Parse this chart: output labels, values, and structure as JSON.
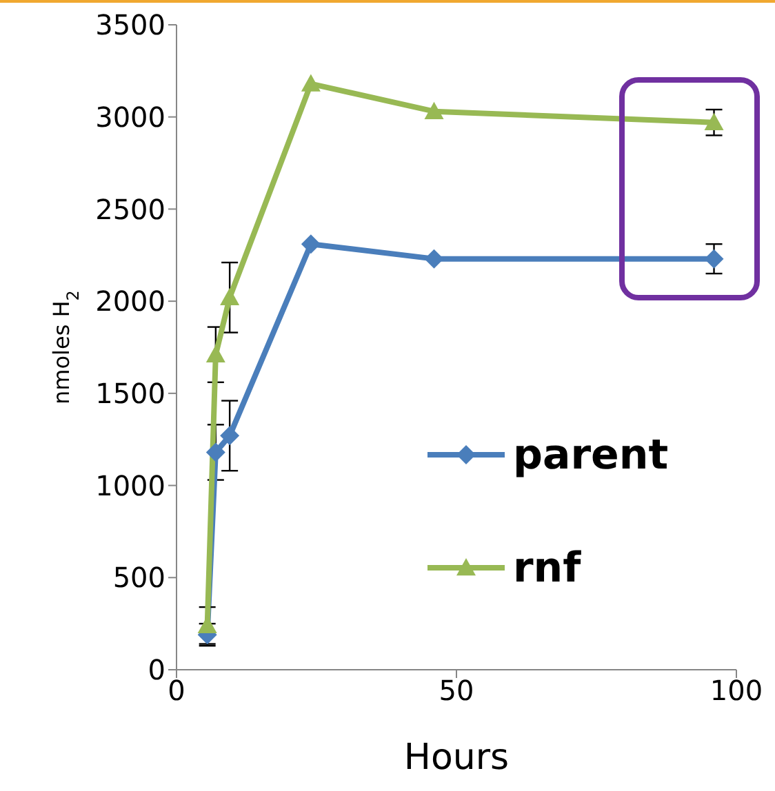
{
  "chart_data": {
    "type": "line",
    "xlabel": "Hours",
    "ylabel": "nmoles H$_{2}$",
    "xlim": [
      0,
      100
    ],
    "xticks": [
      0,
      50,
      100
    ],
    "ylim": [
      0,
      3500
    ],
    "yticks": [
      0,
      500,
      1000,
      1500,
      2000,
      2500,
      3000,
      3500
    ],
    "grid": false,
    "legend": "right",
    "series": [
      {
        "name": "parent",
        "color": "#4a7ebb",
        "marker": "diamond",
        "x": [
          5.5,
          7,
          9.5,
          24,
          46,
          96
        ],
        "values": [
          190,
          1180,
          1270,
          2310,
          2230,
          2230
        ],
        "errors": [
          60,
          150,
          190,
          null,
          null,
          80
        ]
      },
      {
        "name": "rnf",
        "color": "#98b954",
        "marker": "triangle",
        "x": [
          5.5,
          7,
          9.5,
          24,
          46,
          96
        ],
        "values": [
          240,
          1710,
          2020,
          3180,
          3030,
          2970
        ],
        "errors": [
          100,
          150,
          190,
          null,
          null,
          70
        ]
      }
    ]
  }
}
